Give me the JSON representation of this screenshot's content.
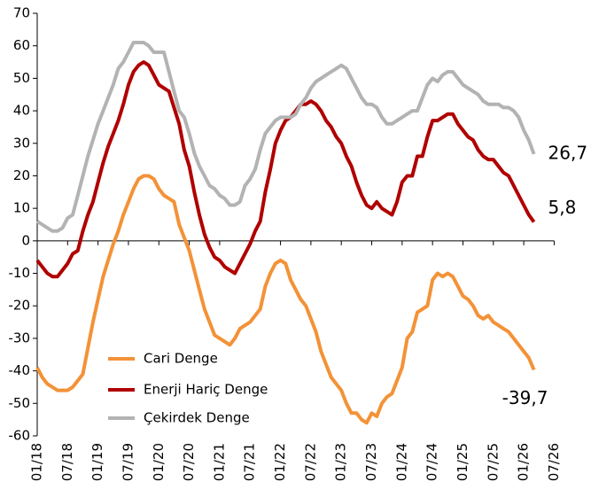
{
  "chart_data": {
    "type": "line",
    "categories": [
      "01/18",
      null,
      null,
      null,
      null,
      null,
      "07/18",
      null,
      null,
      null,
      null,
      null,
      "01/19",
      null,
      null,
      null,
      null,
      null,
      "07/19",
      null,
      null,
      null,
      null,
      null,
      "01/20",
      null,
      null,
      null,
      null,
      null,
      "07/20",
      null,
      null,
      null,
      null,
      null,
      "01/21",
      null,
      null,
      null,
      null,
      null,
      "07/21",
      null,
      null,
      null,
      null,
      null,
      "01/22",
      null,
      null,
      null,
      null,
      null,
      "07/22",
      null,
      null,
      null,
      null,
      null,
      "01/23",
      null,
      null,
      null,
      null,
      null,
      "07/23",
      null,
      null,
      null,
      null,
      null,
      "01/24",
      null,
      null,
      null,
      null,
      null,
      "07/24",
      null,
      null,
      null,
      null,
      null,
      "01/25",
      null,
      null,
      null,
      null,
      null,
      "07/25",
      null,
      null,
      null,
      null,
      null,
      "01/26",
      null,
      null,
      null,
      null,
      null,
      "07/26"
    ],
    "series": [
      {
        "name": "Cari Denge",
        "color": "#f39237",
        "values": [
          -39,
          -42,
          -44,
          -45,
          -46,
          -46,
          -46,
          -45,
          -43,
          -41,
          -33,
          -25,
          -18,
          -11,
          -6,
          -1,
          3,
          8,
          12,
          16,
          19,
          20,
          20,
          19,
          16,
          14,
          13,
          12,
          5,
          1,
          -3,
          -9,
          -15,
          -21,
          -25,
          -29,
          -30,
          -31,
          -32,
          -30,
          -27,
          -26,
          -25,
          -23,
          -21,
          -14,
          -10,
          -7,
          -6,
          -7,
          -12,
          -15,
          -18,
          -20,
          -24,
          -28,
          -34,
          -38,
          -42,
          -44,
          -46,
          -50,
          -53,
          -53,
          -55,
          -56,
          -53,
          -54,
          -50,
          -48,
          -47,
          -43,
          -39,
          -30,
          -28,
          -22,
          -21,
          -20,
          -12,
          -10,
          -11,
          -10,
          -11,
          -14,
          -17,
          -18,
          -20,
          -23,
          -24,
          -23,
          -25,
          -26,
          -27,
          -28,
          -30,
          -32,
          -34,
          -36,
          -39.7,
          null,
          null,
          null,
          null
        ],
        "value_labels": [
          null,
          null,
          null,
          null,
          null,
          null,
          null,
          null,
          null,
          null,
          null,
          null,
          null,
          null,
          null,
          null,
          null,
          null,
          null,
          null,
          null,
          null,
          null,
          null,
          null,
          null,
          null,
          null,
          null,
          null,
          null,
          null,
          null,
          null,
          null,
          null,
          null,
          null,
          null,
          null,
          null,
          null,
          null,
          null,
          null,
          null,
          null,
          null,
          null,
          null,
          null,
          null,
          null,
          null,
          null,
          null,
          null,
          null,
          null,
          null,
          null,
          null,
          null,
          null,
          null,
          null,
          null,
          null,
          null,
          null,
          null,
          null,
          null,
          null,
          null,
          null,
          null,
          null,
          null,
          null,
          null,
          null,
          null,
          null,
          null,
          null,
          null,
          null,
          null,
          null,
          null,
          null,
          null,
          null,
          null,
          null,
          null,
          null,
          "-39,7",
          null,
          null,
          null,
          null
        ]
      },
      {
        "name": "Enerji Hariç Denge",
        "color": "#b00000",
        "values": [
          -6,
          -8,
          -10,
          -11,
          -11,
          -9,
          -7,
          -4,
          -3,
          3,
          8,
          12,
          18,
          24,
          29,
          33,
          37,
          42,
          48,
          52,
          54,
          55,
          54,
          51,
          48,
          47,
          46,
          41,
          36,
          28,
          23,
          15,
          8,
          2,
          -2,
          -5,
          -6,
          -8,
          -9,
          -10,
          -7,
          -4,
          -1,
          3,
          6,
          15,
          22,
          30,
          34,
          37,
          38,
          40,
          42,
          42,
          43,
          42,
          40,
          37,
          35,
          32,
          30,
          26,
          23,
          18,
          14,
          11,
          10,
          12,
          10,
          9,
          8,
          12,
          18,
          20,
          20,
          26,
          26,
          32,
          37,
          37,
          38,
          39,
          39,
          36,
          34,
          32,
          31,
          28,
          26,
          25,
          25,
          23,
          21,
          20,
          17,
          14,
          11,
          8,
          5.8,
          null,
          null,
          null,
          null
        ],
        "value_labels": [
          null,
          null,
          null,
          null,
          null,
          null,
          null,
          null,
          null,
          null,
          null,
          null,
          null,
          null,
          null,
          null,
          null,
          null,
          null,
          null,
          null,
          null,
          null,
          null,
          null,
          null,
          null,
          null,
          null,
          null,
          null,
          null,
          null,
          null,
          null,
          null,
          null,
          null,
          null,
          null,
          null,
          null,
          null,
          null,
          null,
          null,
          null,
          null,
          null,
          null,
          null,
          null,
          null,
          null,
          null,
          null,
          null,
          null,
          null,
          null,
          null,
          null,
          null,
          null,
          null,
          null,
          null,
          null,
          null,
          null,
          null,
          null,
          null,
          null,
          null,
          null,
          null,
          null,
          null,
          null,
          null,
          null,
          null,
          null,
          null,
          null,
          null,
          null,
          null,
          null,
          null,
          null,
          null,
          null,
          null,
          null,
          null,
          null,
          "5,8",
          null,
          null,
          null,
          null
        ]
      },
      {
        "name": "Çekirdek Denge",
        "color": "#b3b3b3",
        "values": [
          6,
          5,
          4,
          3,
          3,
          4,
          7,
          8,
          14,
          20,
          26,
          31,
          36,
          40,
          44,
          48,
          53,
          55,
          58,
          61,
          61,
          61,
          60,
          58,
          58,
          58,
          52,
          46,
          40,
          38,
          33,
          27,
          23,
          20,
          17,
          16,
          14,
          13,
          11,
          11,
          12,
          17,
          19,
          22,
          28,
          33,
          35,
          37,
          38,
          38,
          38,
          39,
          42,
          44,
          47,
          49,
          50,
          51,
          52,
          53,
          54,
          53,
          50,
          47,
          44,
          42,
          42,
          41,
          38,
          36,
          36,
          37,
          38,
          39,
          40,
          40,
          44,
          48,
          50,
          49,
          51,
          52,
          52,
          50,
          48,
          47,
          46,
          45,
          43,
          42,
          42,
          42,
          41,
          41,
          40,
          38,
          34,
          31,
          26.7,
          null,
          null,
          null,
          null
        ],
        "value_labels": [
          null,
          null,
          null,
          null,
          null,
          null,
          null,
          null,
          null,
          null,
          null,
          null,
          null,
          null,
          null,
          null,
          null,
          null,
          null,
          null,
          null,
          null,
          null,
          null,
          null,
          null,
          null,
          null,
          null,
          null,
          null,
          null,
          null,
          null,
          null,
          null,
          null,
          null,
          null,
          null,
          null,
          null,
          null,
          null,
          null,
          null,
          null,
          null,
          null,
          null,
          null,
          null,
          null,
          null,
          null,
          null,
          null,
          null,
          null,
          null,
          null,
          null,
          null,
          null,
          null,
          null,
          null,
          null,
          null,
          null,
          null,
          null,
          null,
          null,
          null,
          null,
          null,
          null,
          null,
          null,
          null,
          null,
          null,
          null,
          null,
          null,
          null,
          null,
          null,
          null,
          null,
          null,
          null,
          null,
          null,
          null,
          null,
          null,
          "26,7",
          null,
          null,
          null,
          null
        ]
      }
    ],
    "ylim": [
      -60,
      70
    ],
    "yticks": [
      -60,
      -50,
      -40,
      -30,
      -20,
      -10,
      0,
      10,
      20,
      30,
      40,
      50,
      60,
      70
    ],
    "grid": false,
    "legend": "lower-left"
  }
}
